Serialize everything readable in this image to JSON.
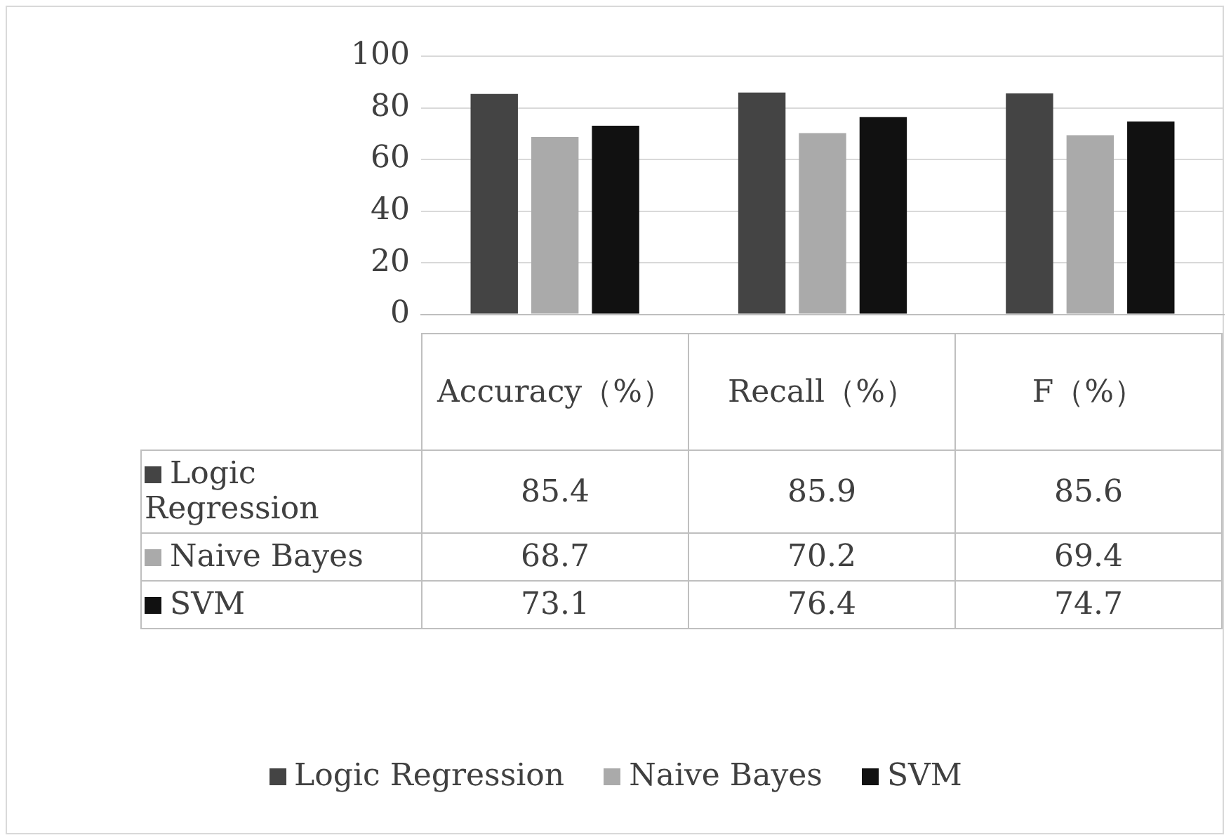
{
  "chart_data": {
    "type": "bar",
    "categories": [
      "Accuracy（%）",
      "Recall（%）",
      "F（%）"
    ],
    "series": [
      {
        "name": "Logic Regression",
        "color": "#444444",
        "values": [
          85.4,
          85.9,
          85.6
        ]
      },
      {
        "name": "Naive Bayes",
        "color": "#aaaaaa",
        "values": [
          68.7,
          70.2,
          69.4
        ]
      },
      {
        "name": "SVM",
        "color": "#111111",
        "values": [
          73.1,
          76.4,
          74.7
        ]
      }
    ],
    "ylim": [
      0,
      100
    ],
    "yticks": [
      0,
      20,
      40,
      60,
      80,
      100
    ],
    "grid": "y",
    "legend": "bottom",
    "data_labels": true
  }
}
